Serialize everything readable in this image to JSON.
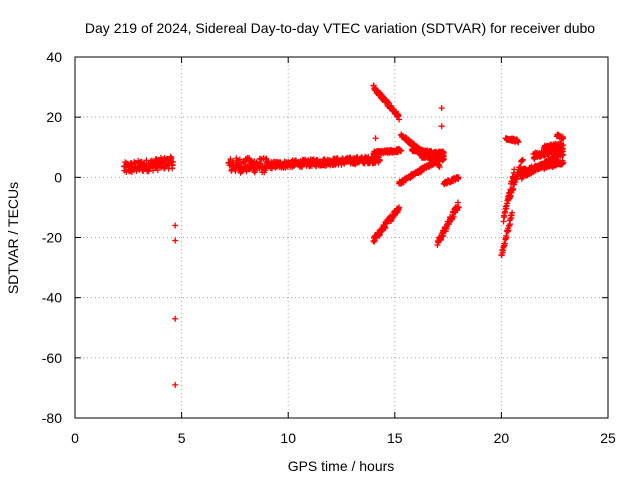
{
  "chart_data": {
    "type": "scatter",
    "title": "Day 219 of 2024, Sidereal Day-to-day VTEC variation (SDTVAR) for receiver dubo",
    "xlabel": "GPS time / hours",
    "ylabel": "SDTVAR / TECUs",
    "xlim": [
      0,
      25
    ],
    "ylim": [
      -80,
      40
    ],
    "xticks": [
      0,
      5,
      10,
      15,
      20,
      25
    ],
    "yticks": [
      -80,
      -60,
      -40,
      -20,
      0,
      20,
      40
    ],
    "grid": true,
    "marker": "+",
    "color": "#ff0000",
    "series": [
      {
        "name": "dubo",
        "segments": [
          {
            "x_start": 2.3,
            "x_end": 4.6,
            "y_start": 3,
            "y_end": 5,
            "y_spread": 2
          },
          {
            "x_start": 7.2,
            "x_end": 9.0,
            "y_start": 4,
            "y_end": 4,
            "y_spread": 2.5
          },
          {
            "x_start": 9.0,
            "x_end": 14.3,
            "y_start": 4,
            "y_end": 6,
            "y_spread": 1.2
          },
          {
            "x_start": 14.0,
            "x_end": 15.2,
            "y_start": 30,
            "y_end": 20,
            "y_spread": 0.8
          },
          {
            "x_start": 14.0,
            "x_end": 15.3,
            "y_start": 8,
            "y_end": 9,
            "y_spread": 0.6
          },
          {
            "x_start": 14.0,
            "x_end": 15.2,
            "y_start": -21,
            "y_end": -10,
            "y_spread": 1
          },
          {
            "x_start": 15.3,
            "x_end": 17.1,
            "y_start": 14,
            "y_end": 4,
            "y_spread": 0.6
          },
          {
            "x_start": 15.8,
            "x_end": 17.3,
            "y_start": 9,
            "y_end": 8,
            "y_spread": 0.5
          },
          {
            "x_start": 16.2,
            "x_end": 17.3,
            "y_start": 7,
            "y_end": 6,
            "y_spread": 0.5
          },
          {
            "x_start": 15.2,
            "x_end": 17.3,
            "y_start": -2,
            "y_end": 7,
            "y_spread": 0.6
          },
          {
            "x_start": 17.0,
            "x_end": 18.0,
            "y_start": -22,
            "y_end": -9,
            "y_spread": 1.2
          },
          {
            "x_start": 17.3,
            "x_end": 18.0,
            "y_start": -2,
            "y_end": 0,
            "y_spread": 0.5
          },
          {
            "x_start": 20.0,
            "x_end": 20.5,
            "y_start": -26,
            "y_end": -12,
            "y_spread": 1
          },
          {
            "x_start": 20.1,
            "x_end": 20.6,
            "y_start": -14,
            "y_end": 2,
            "y_spread": 0.8
          },
          {
            "x_start": 20.3,
            "x_end": 21.0,
            "y_start": -8,
            "y_end": 6,
            "y_spread": 0.8
          },
          {
            "x_start": 20.2,
            "x_end": 20.8,
            "y_start": 13,
            "y_end": 12,
            "y_spread": 0.5
          },
          {
            "x_start": 20.9,
            "x_end": 22.9,
            "y_start": 0,
            "y_end": 8,
            "y_spread": 0.8
          },
          {
            "x_start": 20.9,
            "x_end": 22.9,
            "y_start": 2,
            "y_end": 5,
            "y_spread": 0.8
          },
          {
            "x_start": 21.5,
            "x_end": 22.9,
            "y_start": 7,
            "y_end": 10,
            "y_spread": 1
          },
          {
            "x_start": 22.0,
            "x_end": 22.8,
            "y_start": 10,
            "y_end": 11,
            "y_spread": 0.5
          },
          {
            "x_start": 22.6,
            "x_end": 22.9,
            "y_start": 14,
            "y_end": 13,
            "y_spread": 0.4
          }
        ],
        "outliers": [
          {
            "x": 4.7,
            "y": -16
          },
          {
            "x": 4.7,
            "y": -21
          },
          {
            "x": 4.7,
            "y": -47
          },
          {
            "x": 4.7,
            "y": -69
          },
          {
            "x": 14.1,
            "y": 13
          },
          {
            "x": 17.2,
            "y": 23
          },
          {
            "x": 17.2,
            "y": 17
          }
        ]
      }
    ]
  }
}
